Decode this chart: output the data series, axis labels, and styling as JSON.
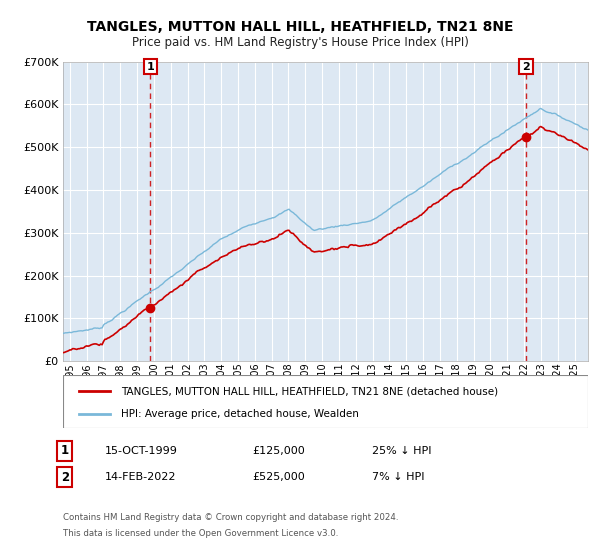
{
  "title": "TANGLES, MUTTON HALL HILL, HEATHFIELD, TN21 8NE",
  "subtitle": "Price paid vs. HM Land Registry's House Price Index (HPI)",
  "legend_line1": "TANGLES, MUTTON HALL HILL, HEATHFIELD, TN21 8NE (detached house)",
  "legend_line2": "HPI: Average price, detached house, Wealden",
  "purchase1_date": "15-OCT-1999",
  "purchase1_price": 125000,
  "purchase1_label": "25% ↓ HPI",
  "purchase2_date": "14-FEB-2022",
  "purchase2_price": 525000,
  "purchase2_label": "7% ↓ HPI",
  "footer1": "Contains HM Land Registry data © Crown copyright and database right 2024.",
  "footer2": "This data is licensed under the Open Government Licence v3.0.",
  "hpi_color": "#7ab8d9",
  "property_color": "#cc0000",
  "bg_color": "#dde8f3",
  "ylim": [
    0,
    700000
  ],
  "xlim_start": 1994.6,
  "xlim_end": 2025.8,
  "purchase1_t": 1999.79,
  "purchase2_t": 2022.12
}
